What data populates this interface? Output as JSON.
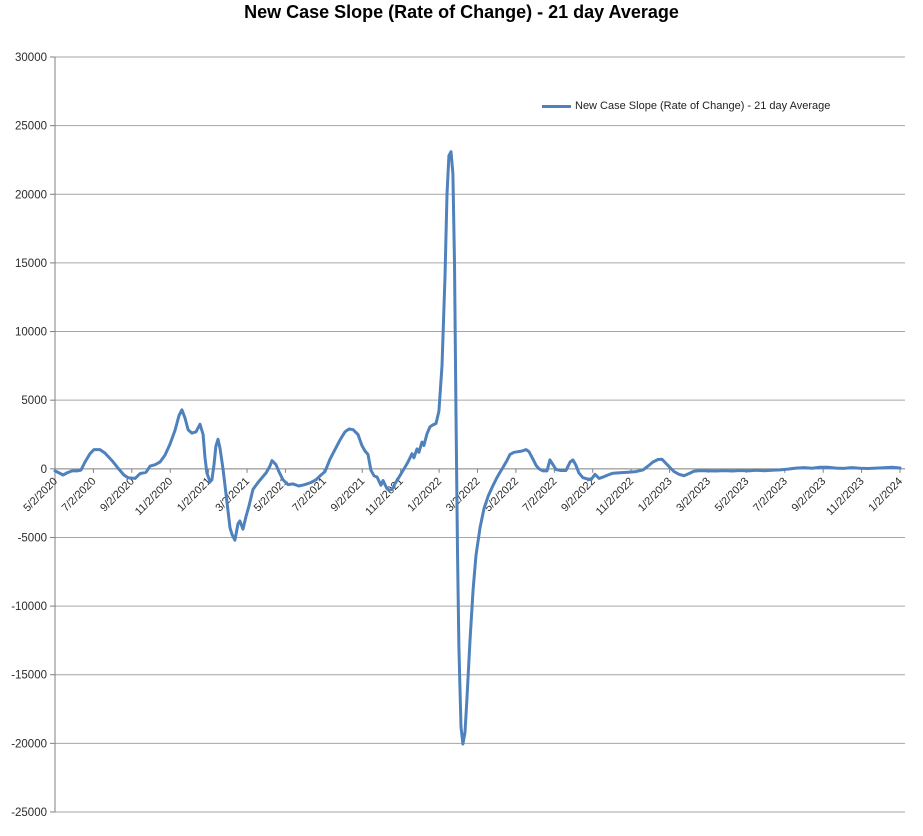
{
  "chart_data": {
    "type": "line",
    "title": "New Case Slope (Rate of Change) - 21 day Average",
    "legend": {
      "position": "inside-top-right",
      "label": "New Case Slope (Rate of Change) - 21 day Average"
    },
    "grid": "horizontal-only",
    "x_axis": {
      "start": "5/2/2020",
      "end": "1/2/2024",
      "months_per_tick": 2,
      "x_unit": "months_since_5/2/2020",
      "tick_labels": [
        "5/2/2020",
        "7/2/2020",
        "9/2/2020",
        "11/2/2020",
        "1/2/2021",
        "3/2/2021",
        "5/2/2021",
        "7/2/2021",
        "9/2/2021",
        "11/2/2021",
        "1/2/2022",
        "3/2/2022",
        "5/2/2022",
        "7/2/2022",
        "9/2/2022",
        "11/2/2022",
        "1/2/2023",
        "3/2/2023",
        "5/2/2023",
        "7/2/2023",
        "9/2/2023",
        "11/2/2023",
        "1/2/2024"
      ]
    },
    "y_axis": {
      "min": -25000,
      "max": 30000,
      "step": 5000,
      "tick_labels": [
        "30000",
        "25000",
        "20000",
        "15000",
        "10000",
        "5000",
        "0",
        "-5000",
        "-10000",
        "-15000",
        "-20000",
        "-25000"
      ]
    },
    "colors": {
      "series": "#4F81BD",
      "gridline": "#A6A6A6",
      "axis": "#808080",
      "label_text": "#2b2b2b",
      "title_text": "#000000"
    },
    "series": [
      {
        "name": "New Case Slope (Rate of Change) - 21 day Average",
        "color": "#4F81BD",
        "points": [
          [
            0,
            -150
          ],
          [
            0.21,
            -300
          ],
          [
            0.42,
            -450
          ],
          [
            0.62,
            -300
          ],
          [
            0.89,
            -150
          ],
          [
            1.15,
            -150
          ],
          [
            1.35,
            -100
          ],
          [
            1.56,
            500
          ],
          [
            1.82,
            1100
          ],
          [
            2.03,
            1400
          ],
          [
            2.34,
            1400
          ],
          [
            2.6,
            1150
          ],
          [
            2.97,
            600
          ],
          [
            3.28,
            50
          ],
          [
            3.59,
            -450
          ],
          [
            3.8,
            -650
          ],
          [
            4.17,
            -700
          ],
          [
            4.43,
            -350
          ],
          [
            4.74,
            -250
          ],
          [
            4.95,
            200
          ],
          [
            5.21,
            300
          ],
          [
            5.47,
            500
          ],
          [
            5.73,
            1000
          ],
          [
            5.99,
            1800
          ],
          [
            6.25,
            2800
          ],
          [
            6.46,
            3900
          ],
          [
            6.61,
            4300
          ],
          [
            6.77,
            3700
          ],
          [
            6.93,
            2850
          ],
          [
            7.13,
            2600
          ],
          [
            7.34,
            2700
          ],
          [
            7.55,
            3250
          ],
          [
            7.71,
            2500
          ],
          [
            7.81,
            800
          ],
          [
            7.91,
            -300
          ],
          [
            8.07,
            -950
          ],
          [
            8.17,
            -800
          ],
          [
            8.28,
            300
          ],
          [
            8.38,
            1650
          ],
          [
            8.49,
            2150
          ],
          [
            8.59,
            1500
          ],
          [
            8.75,
            0
          ],
          [
            8.96,
            -2500
          ],
          [
            9.11,
            -4300
          ],
          [
            9.22,
            -4800
          ],
          [
            9.37,
            -5200
          ],
          [
            9.53,
            -4000
          ],
          [
            9.63,
            -3800
          ],
          [
            9.79,
            -4400
          ],
          [
            9.94,
            -3500
          ],
          [
            10.1,
            -2700
          ],
          [
            10.31,
            -1500
          ],
          [
            10.57,
            -1000
          ],
          [
            10.78,
            -650
          ],
          [
            10.99,
            -300
          ],
          [
            11.19,
            200
          ],
          [
            11.3,
            600
          ],
          [
            11.51,
            300
          ],
          [
            11.66,
            -200
          ],
          [
            11.87,
            -800
          ],
          [
            12.13,
            -1150
          ],
          [
            12.39,
            -1100
          ],
          [
            12.7,
            -1250
          ],
          [
            13.02,
            -1150
          ],
          [
            13.33,
            -1000
          ],
          [
            13.59,
            -800
          ],
          [
            13.85,
            -450
          ],
          [
            14.06,
            -200
          ],
          [
            14.32,
            700
          ],
          [
            14.58,
            1400
          ],
          [
            14.84,
            2100
          ],
          [
            15.1,
            2700
          ],
          [
            15.31,
            2900
          ],
          [
            15.52,
            2850
          ],
          [
            15.78,
            2500
          ],
          [
            15.98,
            1700
          ],
          [
            16.14,
            1300
          ],
          [
            16.3,
            1050
          ],
          [
            16.45,
            -100
          ],
          [
            16.61,
            -500
          ],
          [
            16.77,
            -600
          ],
          [
            16.97,
            -1200
          ],
          [
            17.08,
            -850
          ],
          [
            17.29,
            -1450
          ],
          [
            17.39,
            -1550
          ],
          [
            17.55,
            -1500
          ],
          [
            17.7,
            -1100
          ],
          [
            17.96,
            -500
          ],
          [
            18.22,
            100
          ],
          [
            18.38,
            500
          ],
          [
            18.59,
            1100
          ],
          [
            18.69,
            800
          ],
          [
            18.85,
            1450
          ],
          [
            18.95,
            1200
          ],
          [
            19.11,
            1950
          ],
          [
            19.21,
            1700
          ],
          [
            19.37,
            2550
          ],
          [
            19.52,
            3050
          ],
          [
            19.68,
            3200
          ],
          [
            19.84,
            3300
          ],
          [
            19.99,
            4200
          ],
          [
            20.15,
            7500
          ],
          [
            20.31,
            14000
          ],
          [
            20.41,
            20000
          ],
          [
            20.51,
            22800
          ],
          [
            20.62,
            23100
          ],
          [
            20.72,
            21500
          ],
          [
            20.8,
            15000
          ],
          [
            20.88,
            4000
          ],
          [
            20.96,
            -6000
          ],
          [
            21.03,
            -13000
          ],
          [
            21.14,
            -18800
          ],
          [
            21.24,
            -20050
          ],
          [
            21.35,
            -19200
          ],
          [
            21.45,
            -16800
          ],
          [
            21.61,
            -12500
          ],
          [
            21.77,
            -8800
          ],
          [
            21.92,
            -6300
          ],
          [
            22.13,
            -4300
          ],
          [
            22.34,
            -2900
          ],
          [
            22.55,
            -2000
          ],
          [
            22.81,
            -1200
          ],
          [
            23.01,
            -650
          ],
          [
            23.17,
            -250
          ],
          [
            23.33,
            100
          ],
          [
            23.53,
            600
          ],
          [
            23.69,
            1050
          ],
          [
            23.9,
            1200
          ],
          [
            24.11,
            1250
          ],
          [
            24.32,
            1300
          ],
          [
            24.53,
            1400
          ],
          [
            24.68,
            1250
          ],
          [
            24.89,
            700
          ],
          [
            25.05,
            250
          ],
          [
            25.2,
            0
          ],
          [
            25.41,
            -150
          ],
          [
            25.62,
            -150
          ],
          [
            25.77,
            650
          ],
          [
            25.93,
            300
          ],
          [
            26.09,
            -50
          ],
          [
            26.35,
            -120
          ],
          [
            26.61,
            -120
          ],
          [
            26.82,
            500
          ],
          [
            26.97,
            650
          ],
          [
            27.13,
            250
          ],
          [
            27.28,
            -300
          ],
          [
            27.49,
            -650
          ],
          [
            27.75,
            -750
          ],
          [
            27.91,
            -800
          ],
          [
            28.12,
            -400
          ],
          [
            28.33,
            -700
          ],
          [
            28.53,
            -600
          ],
          [
            28.79,
            -450
          ],
          [
            29.05,
            -320
          ],
          [
            29.42,
            -280
          ],
          [
            29.83,
            -250
          ],
          [
            30.25,
            -200
          ],
          [
            30.62,
            -80
          ],
          [
            30.88,
            200
          ],
          [
            31.14,
            500
          ],
          [
            31.4,
            680
          ],
          [
            31.6,
            700
          ],
          [
            31.81,
            400
          ],
          [
            32.02,
            100
          ],
          [
            32.23,
            -200
          ],
          [
            32.49,
            -400
          ],
          [
            32.75,
            -500
          ],
          [
            33.01,
            -350
          ],
          [
            33.27,
            -180
          ],
          [
            33.58,
            -130
          ],
          [
            34,
            -150
          ],
          [
            34.42,
            -160
          ],
          [
            34.83,
            -130
          ],
          [
            35.25,
            -160
          ],
          [
            35.67,
            -120
          ],
          [
            36.08,
            -150
          ],
          [
            36.5,
            -110
          ],
          [
            36.92,
            -140
          ],
          [
            37.33,
            -100
          ],
          [
            37.75,
            -80
          ],
          [
            38.17,
            -20
          ],
          [
            38.58,
            50
          ],
          [
            39,
            90
          ],
          [
            39.42,
            40
          ],
          [
            39.83,
            110
          ],
          [
            40.25,
            120
          ],
          [
            40.67,
            50
          ],
          [
            41.08,
            30
          ],
          [
            41.5,
            90
          ],
          [
            41.92,
            40
          ],
          [
            42.33,
            20
          ],
          [
            42.75,
            50
          ],
          [
            43.17,
            80
          ],
          [
            43.58,
            110
          ],
          [
            44,
            60
          ]
        ]
      }
    ]
  }
}
